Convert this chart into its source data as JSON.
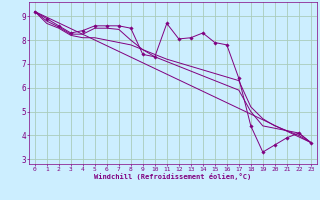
{
  "xlabel": "Windchill (Refroidissement éolien,°C)",
  "background_color": "#cceeff",
  "grid_color": "#aaccbb",
  "line_color": "#800080",
  "xlim": [
    -0.5,
    23.5
  ],
  "ylim": [
    2.8,
    9.6
  ],
  "yticks": [
    3,
    4,
    5,
    6,
    7,
    8,
    9
  ],
  "xticks": [
    0,
    1,
    2,
    3,
    4,
    5,
    6,
    7,
    8,
    9,
    10,
    11,
    12,
    13,
    14,
    15,
    16,
    17,
    18,
    19,
    20,
    21,
    22,
    23
  ],
  "lines": [
    {
      "x": [
        0,
        1,
        2,
        3,
        4,
        5,
        6,
        7,
        8,
        9,
        10,
        11,
        12,
        13,
        14,
        15,
        16,
        17,
        18,
        19,
        20,
        21,
        22,
        23
      ],
      "y": [
        9.2,
        8.9,
        8.6,
        8.3,
        8.4,
        8.6,
        8.6,
        8.6,
        8.5,
        7.4,
        7.3,
        8.7,
        8.05,
        8.1,
        8.3,
        7.9,
        7.8,
        6.4,
        4.4,
        3.3,
        3.6,
        3.9,
        4.1,
        3.7
      ],
      "marker": "D",
      "markersize": 1.8
    },
    {
      "x": [
        0,
        23
      ],
      "y": [
        9.2,
        3.7
      ],
      "marker": null,
      "markersize": 0
    },
    {
      "x": [
        0,
        1,
        2,
        3,
        4,
        5,
        6,
        7,
        8,
        9,
        10,
        11,
        12,
        13,
        14,
        15,
        16,
        17,
        18,
        19,
        20,
        21,
        22,
        23
      ],
      "y": [
        9.2,
        8.8,
        8.55,
        8.25,
        8.25,
        8.5,
        8.5,
        8.45,
        8.0,
        7.6,
        7.4,
        7.2,
        7.05,
        6.9,
        6.75,
        6.6,
        6.45,
        6.3,
        5.2,
        4.7,
        4.4,
        4.2,
        4.0,
        3.7
      ],
      "marker": null,
      "markersize": 0
    },
    {
      "x": [
        0,
        1,
        2,
        3,
        4,
        5,
        6,
        7,
        8,
        9,
        10,
        11,
        12,
        13,
        14,
        15,
        16,
        17,
        18,
        19,
        20,
        21,
        22,
        23
      ],
      "y": [
        9.2,
        8.7,
        8.5,
        8.2,
        8.1,
        8.1,
        8.0,
        7.9,
        7.8,
        7.6,
        7.3,
        7.1,
        6.9,
        6.7,
        6.5,
        6.3,
        6.1,
        5.9,
        5.0,
        4.4,
        4.3,
        4.2,
        4.1,
        3.7
      ],
      "marker": null,
      "markersize": 0
    }
  ]
}
